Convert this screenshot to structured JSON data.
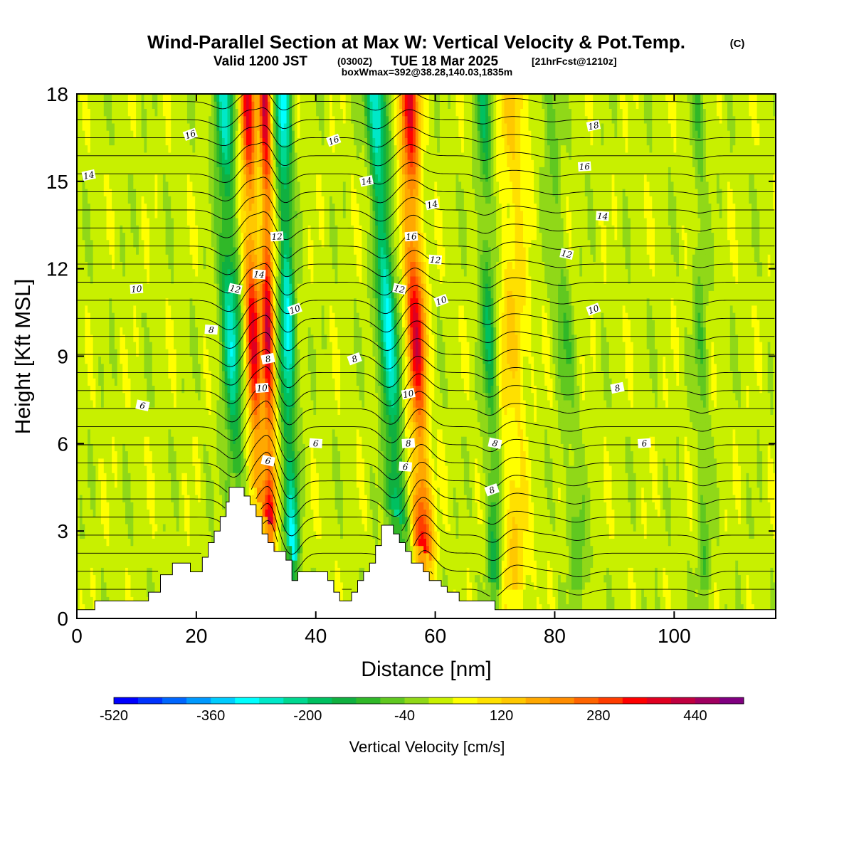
{
  "title": {
    "main": "Wind-Parallel Section at Max W: Vertical Velocity & Pot.Temp.",
    "copyright": "(C)",
    "valid_prefix": "Valid 1200 JST",
    "valid_utc": "(0300Z)",
    "valid_date": "TUE 18 Mar 2025",
    "forecast": "[21hrFcst@1210z]",
    "boxmax": "boxWmax=392@38.28,140.03,1835m"
  },
  "colorbar": {
    "label": "Vertical Velocity [cm/s]",
    "tick_labels": [
      "-520",
      "-360",
      "-200",
      "-40",
      "120",
      "280",
      "440"
    ],
    "colors": [
      "#0000ff",
      "#0033ff",
      "#0066ff",
      "#0099ff",
      "#00ccff",
      "#00ffff",
      "#00e8c8",
      "#00d890",
      "#00c060",
      "#10b040",
      "#30b828",
      "#60c820",
      "#90d818",
      "#c8f000",
      "#ffff00",
      "#ffe000",
      "#ffc800",
      "#ffa800",
      "#ff8c00",
      "#ff6400",
      "#ff3c00",
      "#ff0000",
      "#e00020",
      "#c00040",
      "#a00060",
      "#800080"
    ]
  },
  "chart_data": {
    "type": "heatmap",
    "xlabel": "Distance [nm]",
    "ylabel": "Height [Kft MSL]",
    "xlim": [
      0,
      117
    ],
    "ylim": [
      0,
      18
    ],
    "x_ticks": [
      0,
      20,
      40,
      60,
      80,
      100
    ],
    "y_ticks": [
      0,
      3,
      6,
      9,
      12,
      15,
      18
    ],
    "field": "vertical velocity (cm/s), filled",
    "contours": "potential temperature, line contours",
    "terrain": [
      [
        0,
        0.3
      ],
      [
        3,
        0.3
      ],
      [
        3,
        0.6
      ],
      [
        10,
        0.6
      ],
      [
        12,
        0.6
      ],
      [
        12,
        0.9
      ],
      [
        14,
        0.9
      ],
      [
        14,
        1.5
      ],
      [
        16,
        1.5
      ],
      [
        16,
        1.9
      ],
      [
        19,
        1.9
      ],
      [
        19,
        1.6
      ],
      [
        21,
        1.6
      ],
      [
        21,
        2.1
      ],
      [
        22,
        2.1
      ],
      [
        22,
        2.6
      ],
      [
        23,
        2.6
      ],
      [
        23,
        3.0
      ],
      [
        24,
        3.0
      ],
      [
        24,
        3.5
      ],
      [
        25,
        3.5
      ],
      [
        25,
        4.0
      ],
      [
        25.5,
        4.0
      ],
      [
        25.5,
        4.5
      ],
      [
        28,
        4.5
      ],
      [
        28,
        4.2
      ],
      [
        29,
        4.2
      ],
      [
        29,
        3.9
      ],
      [
        30,
        3.9
      ],
      [
        30,
        3.5
      ],
      [
        31,
        3.5
      ],
      [
        31,
        2.9
      ],
      [
        32,
        2.9
      ],
      [
        32,
        2.6
      ],
      [
        33,
        2.6
      ],
      [
        33,
        2.3
      ],
      [
        35,
        2.3
      ],
      [
        35,
        2.0
      ],
      [
        36,
        2.0
      ],
      [
        36,
        1.3
      ],
      [
        37,
        1.3
      ],
      [
        37,
        1.6
      ],
      [
        42,
        1.6
      ],
      [
        42,
        1.3
      ],
      [
        43,
        1.3
      ],
      [
        43,
        0.9
      ],
      [
        44,
        0.9
      ],
      [
        44,
        0.6
      ],
      [
        46,
        0.6
      ],
      [
        46,
        0.9
      ],
      [
        47,
        0.9
      ],
      [
        47,
        1.3
      ],
      [
        48,
        1.3
      ],
      [
        48,
        1.6
      ],
      [
        49,
        1.6
      ],
      [
        49,
        1.9
      ],
      [
        50,
        1.9
      ],
      [
        50,
        2.5
      ],
      [
        51,
        2.5
      ],
      [
        51,
        3.2
      ],
      [
        53,
        3.2
      ],
      [
        53,
        2.9
      ],
      [
        54,
        2.9
      ],
      [
        54,
        2.6
      ],
      [
        55,
        2.6
      ],
      [
        55,
        2.3
      ],
      [
        56,
        2.3
      ],
      [
        56,
        1.9
      ],
      [
        58,
        1.9
      ],
      [
        58,
        1.6
      ],
      [
        59,
        1.6
      ],
      [
        59,
        1.3
      ],
      [
        61,
        1.3
      ],
      [
        61,
        1.1
      ],
      [
        62,
        1.1
      ],
      [
        62,
        0.9
      ],
      [
        64,
        0.9
      ],
      [
        64,
        0.6
      ],
      [
        70,
        0.6
      ],
      [
        70,
        0.3
      ],
      [
        117,
        0.3
      ]
    ],
    "w_features": [
      {
        "x_base": 27,
        "x_top": 24.5,
        "w": -280,
        "width": 1.6
      },
      {
        "x_base": 30.5,
        "x_top": 28.5,
        "w": 340,
        "width": 1.3
      },
      {
        "x_base": 32.5,
        "x_top": 31.5,
        "w": 392,
        "width": 1.0
      },
      {
        "x_base": 36,
        "x_top": 34.5,
        "w": -330,
        "width": 1.3
      },
      {
        "x_base": 54,
        "x_top": 50,
        "w": -330,
        "width": 1.6
      },
      {
        "x_base": 58,
        "x_top": 55.5,
        "w": 360,
        "width": 1.6
      },
      {
        "x_base": 70,
        "x_top": 68,
        "w": -180,
        "width": 1.3
      },
      {
        "x_base": 73,
        "x_top": 73,
        "w": 110,
        "width": 2.5
      },
      {
        "x_base": 84,
        "x_top": 79,
        "w": -90,
        "width": 1.6
      },
      {
        "x_base": 105,
        "x_top": 104,
        "w": -90,
        "width": 1.2
      }
    ],
    "contour_labels": [
      {
        "text": "16",
        "x": 19,
        "y": 16.6
      },
      {
        "text": "14",
        "x": 2,
        "y": 15.2
      },
      {
        "text": "10",
        "x": 10,
        "y": 11.3
      },
      {
        "text": "8",
        "x": 22.5,
        "y": 9.9
      },
      {
        "text": "6",
        "x": 11,
        "y": 7.3
      },
      {
        "text": "16",
        "x": 43,
        "y": 16.4
      },
      {
        "text": "14",
        "x": 48.5,
        "y": 15.0
      },
      {
        "text": "12",
        "x": 33.5,
        "y": 13.1
      },
      {
        "text": "14",
        "x": 30.5,
        "y": 11.8
      },
      {
        "text": "12",
        "x": 26.5,
        "y": 11.3
      },
      {
        "text": "10",
        "x": 36.5,
        "y": 10.6
      },
      {
        "text": "8",
        "x": 32,
        "y": 8.9
      },
      {
        "text": "10",
        "x": 31,
        "y": 7.9
      },
      {
        "text": "6",
        "x": 40,
        "y": 6.0
      },
      {
        "text": "6",
        "x": 32,
        "y": 5.4
      },
      {
        "text": "8",
        "x": 46.5,
        "y": 8.9
      },
      {
        "text": "14",
        "x": 59.5,
        "y": 14.2
      },
      {
        "text": "16",
        "x": 56,
        "y": 13.1
      },
      {
        "text": "12",
        "x": 60,
        "y": 12.3
      },
      {
        "text": "12",
        "x": 54,
        "y": 11.3
      },
      {
        "text": "10",
        "x": 61,
        "y": 10.9
      },
      {
        "text": "10",
        "x": 55.5,
        "y": 7.7
      },
      {
        "text": "8",
        "x": 55.5,
        "y": 6.0
      },
      {
        "text": "6",
        "x": 55,
        "y": 5.2
      },
      {
        "text": "8",
        "x": 70,
        "y": 6.0
      },
      {
        "text": "8",
        "x": 69.5,
        "y": 4.4
      },
      {
        "text": "18",
        "x": 86.5,
        "y": 16.9
      },
      {
        "text": "16",
        "x": 85,
        "y": 15.5
      },
      {
        "text": "14",
        "x": 88,
        "y": 13.8
      },
      {
        "text": "12",
        "x": 82,
        "y": 12.5
      },
      {
        "text": "10",
        "x": 86.5,
        "y": 10.6
      },
      {
        "text": "8",
        "x": 90.5,
        "y": 7.9
      },
      {
        "text": "6",
        "x": 95,
        "y": 6.0
      }
    ]
  }
}
